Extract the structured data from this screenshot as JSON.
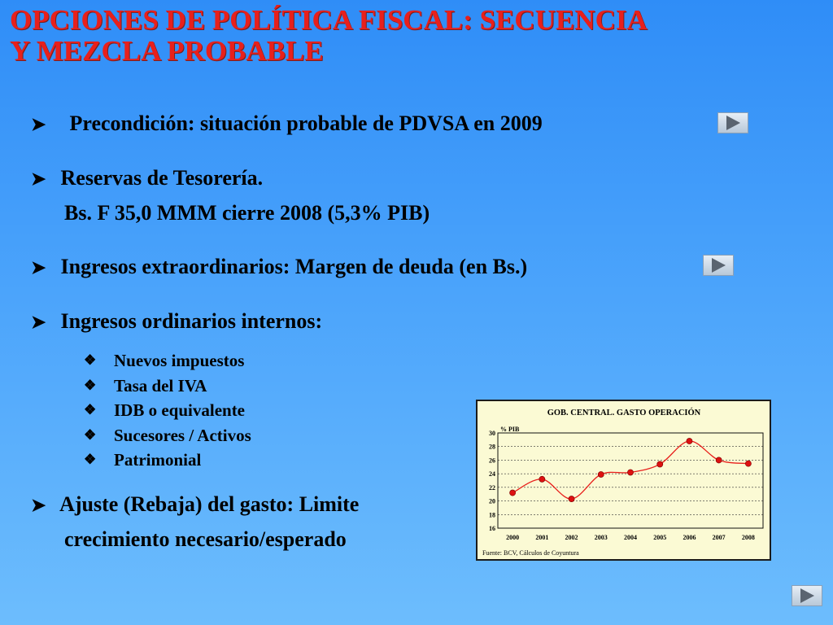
{
  "title": {
    "line1": "OPCIONES DE POLÍTICA FISCAL: SECUENCIA",
    "line2": "Y MEZCLA PROBABLE"
  },
  "bullets": {
    "precondicion": "Precondición: situación probable de PDVSA en 2009",
    "reservas_line1": "Reservas de Tesorería.",
    "reservas_line2": "Bs. F 35,0 MMM cierre 2008 (5,3% PIB)",
    "ingresos_extra": "Ingresos extraordinarios: Margen de deuda (en Bs.)",
    "ingresos_ord": "Ingresos ordinarios internos:",
    "ajuste_line1": "Ajuste (Rebaja) del gasto: Limite",
    "ajuste_line2": "crecimiento necesario/esperado"
  },
  "subitems": [
    "Nuevos impuestos",
    "Tasa del IVA",
    "IDB o equivalente",
    "Sucesores / Activos",
    "Patrimonial"
  ],
  "icons": {
    "bullet": "arrow-bullet-icon",
    "subbullet": "diamond-bullet-icon",
    "nav": "play-button-icon"
  },
  "colors": {
    "title": "#e8201c",
    "chart_bg": "#fbfad4",
    "series_line": "#e8201c",
    "series_point": "#dd1111"
  },
  "chart_data": {
    "type": "line",
    "title": "GOB. CENTRAL. GASTO OPERACIÓN",
    "ylabel": "% PIB",
    "xlabel": "",
    "source": "Fuente: BCV, Cálculos de Coyuntura",
    "categories": [
      "2000",
      "2001",
      "2002",
      "2003",
      "2004",
      "2005",
      "2006",
      "2007",
      "2008"
    ],
    "values": [
      21.2,
      23.2,
      20.3,
      23.9,
      24.2,
      25.4,
      28.8,
      26.0,
      25.5
    ],
    "ylim": [
      16,
      30
    ],
    "yticks": [
      16,
      18,
      20,
      22,
      24,
      26,
      28,
      30
    ],
    "grid": true,
    "smooth": true
  }
}
